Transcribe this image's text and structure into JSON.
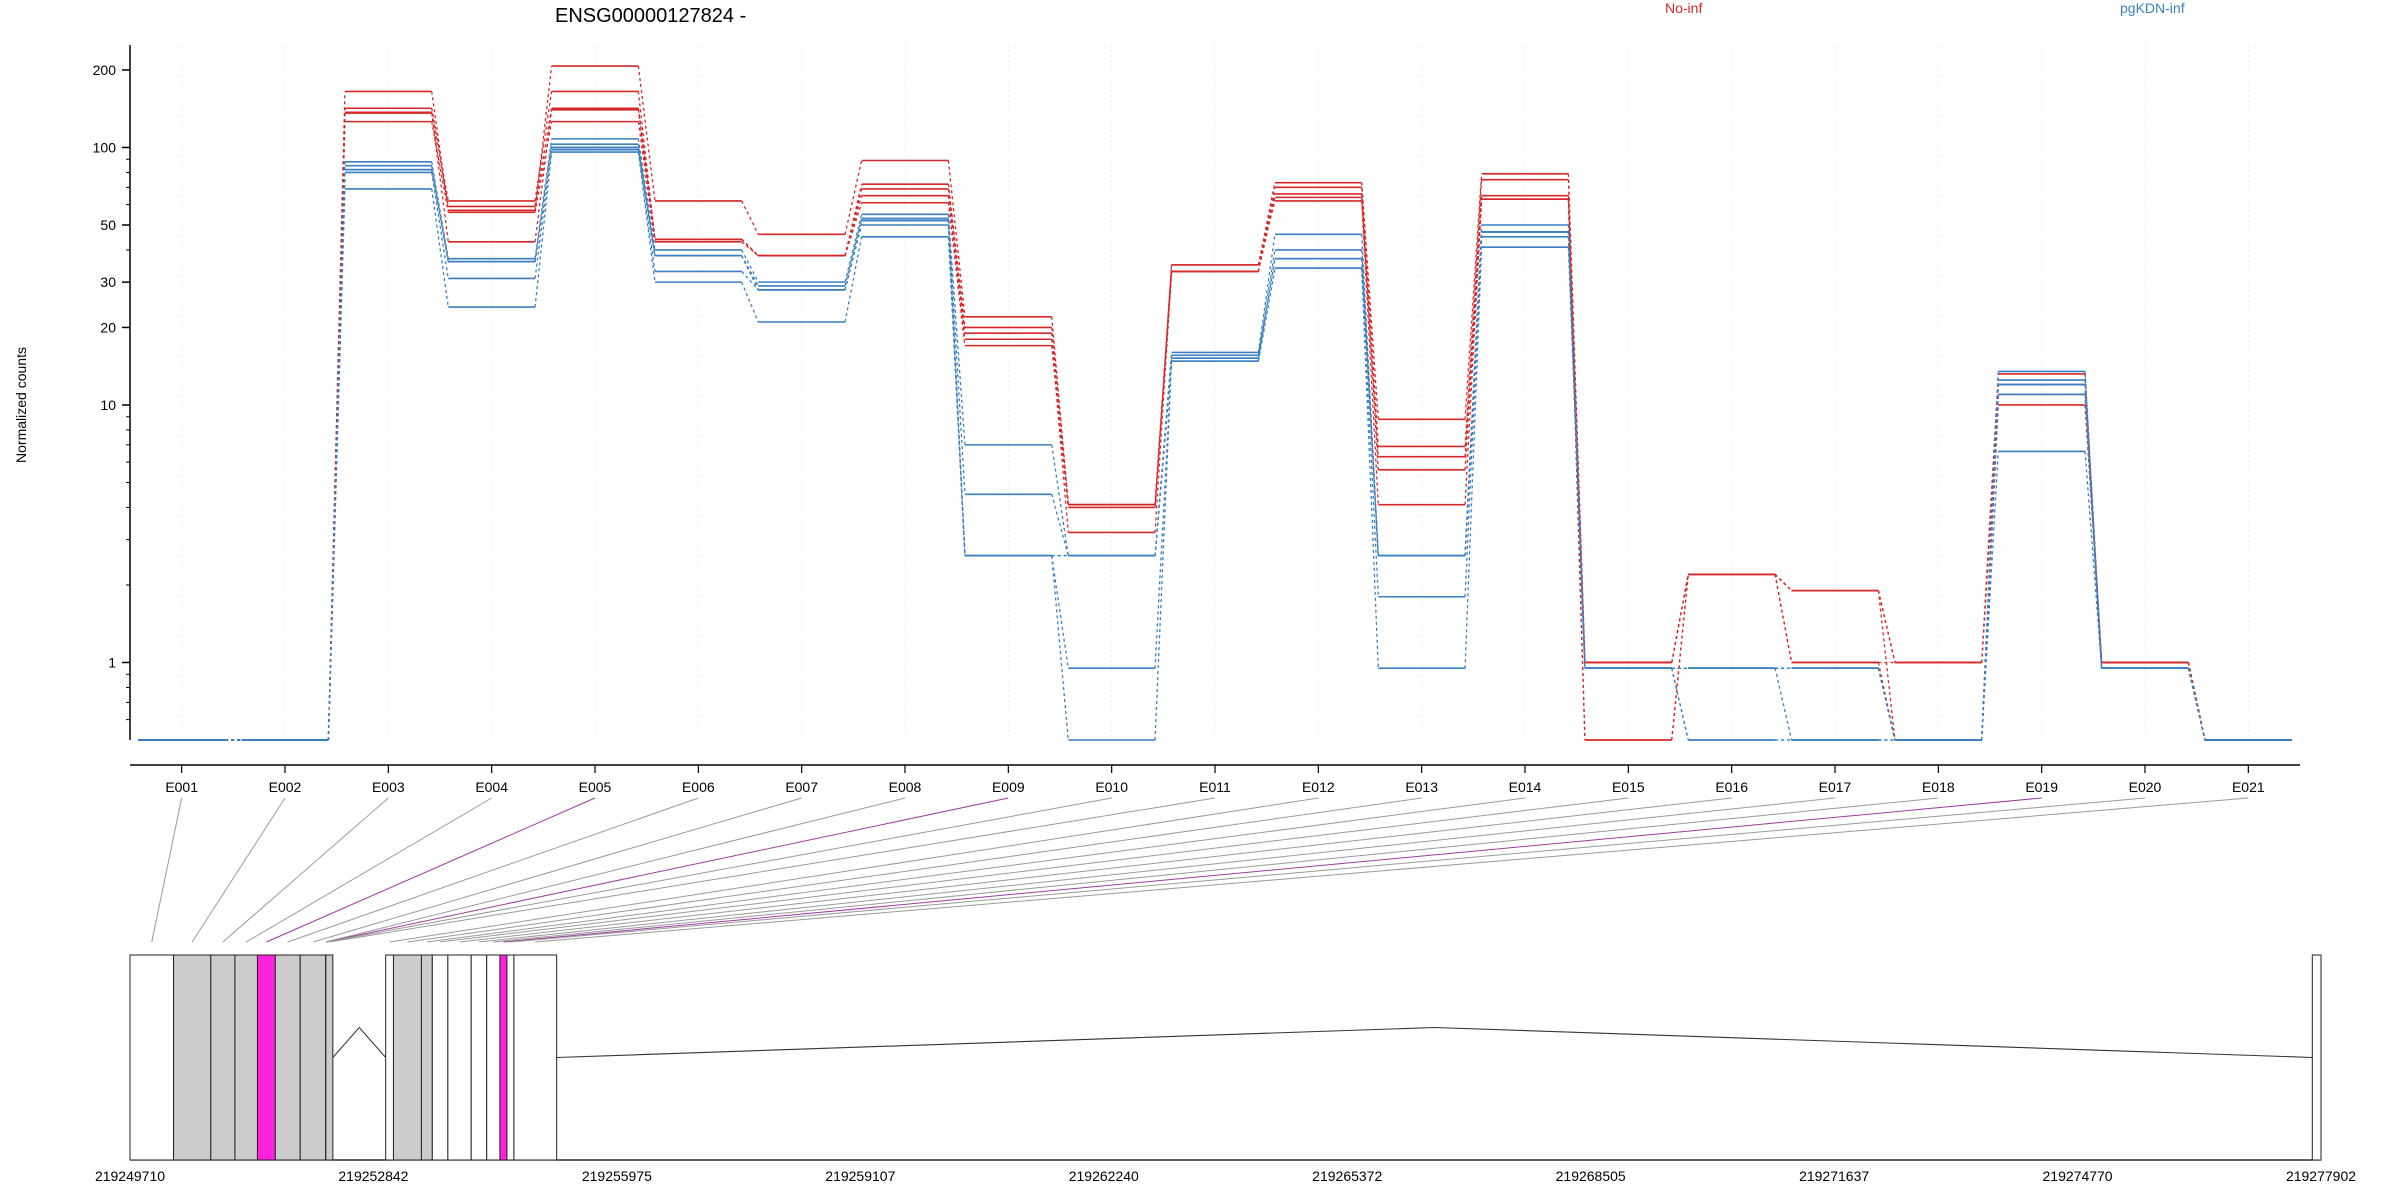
{
  "chart_data": [
    {
      "type": "line",
      "title": "ENSG00000127824 -",
      "ylabel": "Normalized counts",
      "xlabel": "",
      "yscale": "log",
      "ylim": [
        0.5,
        250
      ],
      "yticks": [
        {
          "value": 1,
          "label": "1"
        },
        {
          "value": 10,
          "label": "10"
        },
        {
          "value": 20,
          "label": "20"
        },
        {
          "value": 30,
          "label": "30"
        },
        {
          "value": 50,
          "label": "50"
        },
        {
          "value": 100,
          "label": "100"
        },
        {
          "value": 200,
          "label": "200"
        }
      ],
      "categories": [
        "E001",
        "E002",
        "E003",
        "E004",
        "E005",
        "E006",
        "E007",
        "E008",
        "E009",
        "E010",
        "E011",
        "E012",
        "E013",
        "E014",
        "E015",
        "E016",
        "E017",
        "E018",
        "E019",
        "E020",
        "E021"
      ],
      "legend": [
        "No-inf",
        "pgKDN-inf"
      ],
      "series": [
        {
          "group": "No-inf",
          "color": "#d62728",
          "values": [
            0.5,
            0.5,
            165,
            57,
            207,
            62,
            46,
            89,
            22,
            4.1,
            35,
            73,
            8.8,
            79,
            1.0,
            2.2,
            1.0,
            1.0,
            13.2,
            1.0,
            0.5
          ]
        },
        {
          "group": "No-inf",
          "color": "#d62728",
          "values": [
            0.5,
            0.5,
            142,
            62,
            165,
            44,
            38,
            72,
            20,
            4.1,
            33,
            70,
            6.9,
            75,
            1.0,
            2.2,
            1.9,
            1.0,
            11.0,
            1.0,
            0.5
          ]
        },
        {
          "group": "No-inf",
          "color": "#d62728",
          "values": [
            0.5,
            0.5,
            137,
            59,
            142,
            44,
            38,
            69,
            19,
            4.1,
            33,
            66,
            6.3,
            65,
            1.0,
            2.2,
            1.9,
            1.0,
            11.0,
            1.0,
            0.5
          ]
        },
        {
          "group": "No-inf",
          "color": "#d62728",
          "values": [
            0.5,
            0.5,
            126,
            56,
            126,
            43,
            38,
            65,
            18,
            3.2,
            33,
            64,
            5.6,
            63,
            0.5,
            2.2,
            1.0,
            0.5,
            10.0,
            1.0,
            0.5
          ]
        },
        {
          "group": "No-inf",
          "color": "#d62728",
          "values": [
            0.5,
            0.5,
            136,
            43,
            140,
            44,
            38,
            61,
            17,
            4.0,
            35,
            62,
            4.1,
            63,
            0.5,
            2.2,
            1.9,
            0.5,
            12.0,
            1.0,
            0.5
          ]
        },
        {
          "group": "pgKDN-inf",
          "color": "#3a7fc1",
          "values": [
            0.5,
            0.5,
            88,
            37,
            108,
            40,
            30,
            55,
            7.0,
            2.6,
            16,
            46,
            2.6,
            50,
            0.95,
            0.95,
            0.95,
            0.5,
            13.5,
            0.95,
            0.5
          ]
        },
        {
          "group": "pgKDN-inf",
          "color": "#3a7fc1",
          "values": [
            0.5,
            0.5,
            85,
            36,
            103,
            38,
            29,
            53,
            4.5,
            2.6,
            15.6,
            40,
            2.6,
            47,
            0.95,
            0.95,
            0.95,
            0.5,
            12.5,
            0.95,
            0.5
          ]
        },
        {
          "group": "pgKDN-inf",
          "color": "#3a7fc1",
          "values": [
            0.5,
            0.5,
            82,
            36,
            100,
            38,
            28,
            52,
            2.6,
            2.6,
            15.2,
            37,
            2.6,
            47,
            0.95,
            0.95,
            0.5,
            0.5,
            12.0,
            0.95,
            0.5
          ]
        },
        {
          "group": "pgKDN-inf",
          "color": "#3a7fc1",
          "values": [
            0.5,
            0.5,
            80,
            31,
            98,
            33,
            28,
            50,
            2.6,
            2.6,
            14.8,
            34,
            1.8,
            45,
            0.95,
            0.5,
            0.5,
            0.5,
            11.0,
            0.95,
            0.5
          ]
        },
        {
          "group": "pgKDN-inf",
          "color": "#3a7fc1",
          "values": [
            0.5,
            0.5,
            69,
            24,
            96,
            30,
            21,
            45,
            2.6,
            0.95,
            14.8,
            34,
            0.95,
            41,
            0.95,
            0.5,
            0.5,
            0.5,
            6.6,
            0.95,
            0.5
          ]
        },
        {
          "group": "pgKDN-inf",
          "color": "#3a7fc1",
          "values": [
            0.5,
            0.5,
            82,
            36,
            100,
            38,
            28,
            52,
            2.6,
            0.5,
            15.2,
            37,
            2.6,
            47,
            0.95,
            0.95,
            0.95,
            0.5,
            12.0,
            0.95,
            0.5
          ]
        }
      ]
    },
    {
      "type": "gene-model",
      "x_ticks": [
        "219249710",
        "219252842",
        "219255975",
        "219259107",
        "219262240",
        "219265372",
        "219268505",
        "219271637",
        "219274770",
        "219277902"
      ],
      "xlim": [
        219249710,
        219277902
      ],
      "highlight_color": "#ff22dd",
      "exon_fill": "#cccccc",
      "exons": [
        {
          "id": "E001",
          "start": 219249710,
          "end": 219250270,
          "highlight": false,
          "counted": false
        },
        {
          "id": "E002",
          "start": 219250270,
          "end": 219250750,
          "highlight": false,
          "counted": true
        },
        {
          "id": "E003",
          "start": 219250750,
          "end": 219251060,
          "highlight": false,
          "counted": true
        },
        {
          "id": "E004",
          "start": 219251060,
          "end": 219251350,
          "highlight": false,
          "counted": true
        },
        {
          "id": "E005",
          "start": 219251350,
          "end": 219251580,
          "highlight": true,
          "counted": true
        },
        {
          "id": "E006",
          "start": 219251580,
          "end": 219251900,
          "highlight": false,
          "counted": true
        },
        {
          "id": "E007",
          "start": 219251900,
          "end": 219252230,
          "highlight": false,
          "counted": true
        },
        {
          "id": "E008",
          "start": 219252230,
          "end": 219252230,
          "highlight": false,
          "counted": true
        },
        {
          "id": "E009",
          "start": 219252230,
          "end": 219252230,
          "highlight": true,
          "counted": true
        },
        {
          "id": "E010",
          "start": 219252230,
          "end": 219252230,
          "highlight": false,
          "counted": true
        },
        {
          "id": "E011",
          "start": 219252230,
          "end": 219252320,
          "highlight": false,
          "counted": true
        },
        {
          "id": "E012",
          "start": 219253000,
          "end": 219253100,
          "highlight": false,
          "counted": false
        },
        {
          "id": "E013",
          "start": 219253100,
          "end": 219253460,
          "highlight": false,
          "counted": true
        },
        {
          "id": "E014",
          "start": 219253460,
          "end": 219253600,
          "highlight": false,
          "counted": true
        },
        {
          "id": "E015",
          "start": 219253600,
          "end": 219253800,
          "highlight": false,
          "counted": false
        },
        {
          "id": "E016",
          "start": 219253800,
          "end": 219254100,
          "highlight": false,
          "counted": false
        },
        {
          "id": "E017",
          "start": 219254100,
          "end": 219254300,
          "highlight": false,
          "counted": false
        },
        {
          "id": "E018",
          "start": 219254300,
          "end": 219254470,
          "highlight": false,
          "counted": false
        },
        {
          "id": "E019",
          "start": 219254470,
          "end": 219254560,
          "highlight": true,
          "counted": false
        },
        {
          "id": "E020",
          "start": 219254560,
          "end": 219254650,
          "highlight": false,
          "counted": false
        },
        {
          "id": "E021",
          "start": 219254650,
          "end": 219255200,
          "highlight": false,
          "counted": false
        },
        {
          "id": "E022",
          "start": 219277790,
          "end": 219277902,
          "highlight": false,
          "counted": false
        }
      ]
    }
  ]
}
